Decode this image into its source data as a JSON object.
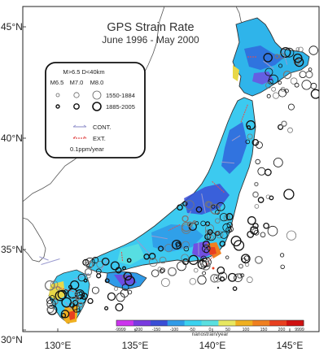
{
  "title": "GPS Strain Rate",
  "subtitle": "June 1996 - May 2000",
  "x_axis": {
    "ticks": [
      "130°E",
      "135°E",
      "140°E",
      "145°E"
    ]
  },
  "y_axis": {
    "ticks": [
      "45°N",
      "40°N",
      "35°N",
      "30°N"
    ]
  },
  "legend": {
    "header": "M>6.5 D<40km",
    "magnitudes": [
      "M6.5",
      "M7.0",
      "M8.0"
    ],
    "period_old": "1550-1884",
    "period_new": "1885-2005",
    "cont_label": "CONT.",
    "ext_label": "EXT.",
    "scale_label": "0.1ppm/year",
    "cont_color": "#9a9acf",
    "ext_color": "#e25050"
  },
  "colorbar": {
    "ticks": [
      "-9999",
      "-200",
      "-150",
      "-100",
      "-50",
      "0",
      "50",
      "100",
      "150",
      "200",
      "9999"
    ],
    "units": "nanostrain/year",
    "colors": [
      "#cc33ee",
      "#7a3be0",
      "#3a4ed6",
      "#2f9be8",
      "#3ad2f0",
      "#5ae0e0",
      "#e8e860",
      "#f0b020",
      "#f08020",
      "#e84020",
      "#d01010"
    ]
  }
}
